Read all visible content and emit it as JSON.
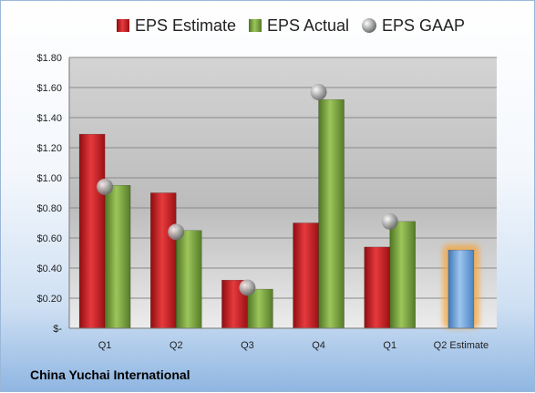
{
  "chart_data": {
    "type": "bar",
    "title": "",
    "xlabel": "",
    "ylabel": "",
    "categories": [
      "Q1",
      "Q2",
      "Q3",
      "Q4",
      "Q1",
      "Q2 Estimate"
    ],
    "series": [
      {
        "name": "EPS Estimate",
        "values": [
          1.29,
          0.9,
          0.32,
          0.7,
          0.54,
          null
        ],
        "color": "#c0171b"
      },
      {
        "name": "EPS Actual",
        "values": [
          0.95,
          0.65,
          0.26,
          1.52,
          0.71,
          null
        ],
        "color": "#76a03a"
      },
      {
        "name": "EPS GAAP",
        "values": [
          0.94,
          0.64,
          0.27,
          1.57,
          0.71,
          null
        ],
        "color": "#a9a9a9",
        "marker": "sphere"
      }
    ],
    "q2_estimate_value": 0.52,
    "q2_estimate_color": "#6fa8dc",
    "ylim": [
      0,
      1.8
    ],
    "yticks": [
      "$-",
      "$0.20",
      "$0.40",
      "$0.60",
      "$0.80",
      "$1.00",
      "$1.20",
      "$1.40",
      "$1.60",
      "$1.80"
    ],
    "grid": true,
    "legend_position": "top",
    "company": "China Yuchai International"
  }
}
